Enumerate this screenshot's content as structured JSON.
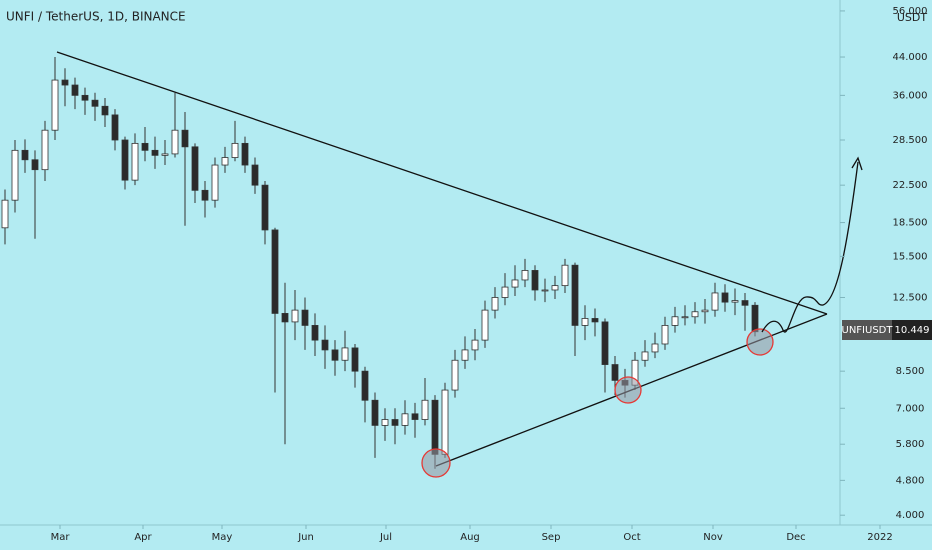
{
  "chart_data": {
    "type": "candlestick",
    "title": "UNFI / TetherUS, 1D, BINANCE",
    "currency_label": "USDT",
    "symbol_label": "UNFIUSDT",
    "log_scale": true,
    "grid": false,
    "up_color": "#ffffff",
    "down_color": "#2b2b2b",
    "open": [
      18.0,
      20.8,
      27.0,
      25.7,
      24.4,
      30.0,
      39.0,
      38.0,
      36.0,
      35.1,
      34.0,
      32.5,
      28.5,
      23.1,
      28.0,
      27.0,
      26.3,
      26.5,
      30.0,
      27.5,
      21.9,
      20.8,
      25.0,
      26.0,
      28.0,
      25.0,
      22.5,
      17.8,
      11.5,
      11.0,
      11.7,
      10.8,
      10.0,
      9.5,
      9.0,
      9.6,
      8.5,
      7.3,
      6.4,
      6.6,
      6.4,
      6.8,
      6.6,
      7.3,
      5.5,
      7.7,
      9.0,
      9.5,
      10.0,
      11.7,
      12.5,
      13.2,
      13.7,
      14.4,
      13.0,
      13.0,
      13.3,
      14.8,
      10.8,
      11.2,
      11.0,
      8.8,
      8.1,
      7.9,
      9.0,
      9.4,
      9.8,
      10.8,
      11.3,
      11.3,
      11.6,
      11.7,
      12.8,
      12.2,
      12.3,
      12.0
    ],
    "high": [
      22.0,
      28.5,
      28.6,
      27.0,
      31.5,
      44.0,
      41.5,
      39.5,
      37.5,
      36.5,
      35.5,
      33.5,
      29.0,
      29.5,
      30.5,
      29.0,
      28.5,
      36.5,
      33.0,
      28.0,
      23.0,
      26.0,
      27.5,
      31.5,
      29.0,
      26.0,
      23.0,
      18.0,
      13.5,
      13.0,
      12.5,
      11.5,
      10.8,
      10.0,
      10.5,
      9.8,
      8.7,
      7.6,
      7.0,
      7.0,
      7.3,
      7.2,
      8.2,
      7.5,
      8.0,
      9.5,
      10.2,
      10.6,
      12.3,
      13.2,
      14.2,
      14.8,
      15.3,
      14.8,
      13.8,
      14.0,
      15.3,
      15.0,
      12.0,
      11.8,
      11.2,
      9.2,
      8.6,
      9.4,
      10.0,
      10.4,
      11.3,
      11.9,
      12.0,
      12.2,
      12.4,
      13.5,
      13.4,
      13.1,
      12.8,
      12.2
    ],
    "low": [
      16.5,
      19.5,
      24.0,
      17.0,
      23.0,
      28.5,
      34.0,
      33.5,
      32.5,
      31.5,
      30.5,
      27.0,
      22.0,
      22.5,
      25.5,
      24.5,
      25.0,
      26.0,
      18.2,
      20.5,
      19.0,
      20.0,
      24.0,
      25.5,
      24.0,
      21.5,
      16.5,
      7.6,
      5.8,
      10.0,
      9.5,
      9.2,
      8.6,
      8.3,
      8.5,
      7.8,
      6.5,
      5.4,
      5.9,
      5.8,
      6.1,
      6.0,
      6.4,
      5.1,
      5.4,
      7.4,
      8.6,
      9.0,
      9.6,
      11.2,
      12.0,
      12.6,
      13.2,
      12.3,
      12.2,
      12.4,
      12.8,
      9.2,
      10.0,
      10.2,
      7.6,
      7.5,
      7.4,
      7.7,
      8.7,
      9.1,
      9.5,
      10.4,
      10.8,
      10.9,
      10.9,
      11.3,
      11.6,
      11.4,
      10.5,
      10.2
    ],
    "close": [
      20.8,
      27.0,
      25.7,
      24.4,
      30.0,
      39.0,
      38.0,
      36.0,
      35.1,
      34.0,
      32.5,
      28.5,
      23.1,
      28.0,
      27.0,
      26.3,
      26.5,
      30.0,
      27.5,
      21.9,
      20.8,
      25.0,
      26.0,
      28.0,
      25.0,
      22.5,
      17.8,
      11.5,
      11.0,
      11.7,
      10.8,
      10.0,
      9.5,
      9.0,
      9.6,
      8.5,
      7.3,
      6.4,
      6.6,
      6.4,
      6.8,
      6.6,
      7.3,
      5.5,
      7.7,
      9.0,
      9.5,
      10.0,
      11.7,
      12.5,
      13.2,
      13.7,
      14.4,
      13.0,
      13.0,
      13.3,
      14.8,
      10.8,
      11.2,
      11.0,
      8.8,
      8.1,
      7.9,
      9.0,
      9.4,
      9.8,
      10.8,
      11.3,
      11.3,
      11.6,
      11.7,
      12.8,
      12.2,
      12.3,
      12.0,
      10.449
    ],
    "xlim": [
      -0.5,
      92.7
    ],
    "xticks": [
      {
        "value": 5.5,
        "label": "Mar"
      },
      {
        "value": 13.8,
        "label": "Apr"
      },
      {
        "value": 21.7,
        "label": "May"
      },
      {
        "value": 30.1,
        "label": "Jun"
      },
      {
        "value": 38.1,
        "label": "Jul"
      },
      {
        "value": 46.5,
        "label": "Aug"
      },
      {
        "value": 54.6,
        "label": "Sep"
      },
      {
        "value": 62.7,
        "label": "Oct"
      },
      {
        "value": 70.8,
        "label": "Nov"
      },
      {
        "value": 79.1,
        "label": "Dec"
      },
      {
        "value": 87.5,
        "label": "2022"
      }
    ],
    "ylim": [
      3.8,
      59.3
    ],
    "yticks": [
      {
        "value": 4,
        "label": "4.000"
      },
      {
        "value": 4.8,
        "label": "4.800"
      },
      {
        "value": 5.8,
        "label": "5.800"
      },
      {
        "value": 7,
        "label": "7.000"
      },
      {
        "value": 8.5,
        "label": "8.500"
      },
      {
        "value": 12.5,
        "label": "12.500"
      },
      {
        "value": 15.5,
        "label": "15.500"
      },
      {
        "value": 18.5,
        "label": "18.500"
      },
      {
        "value": 22.5,
        "label": "22.500"
      },
      {
        "value": 28.5,
        "label": "28.500"
      },
      {
        "value": 36,
        "label": "36.000"
      },
      {
        "value": 44,
        "label": "44.000"
      },
      {
        "value": 56,
        "label": "56.000"
      }
    ]
  }
}
